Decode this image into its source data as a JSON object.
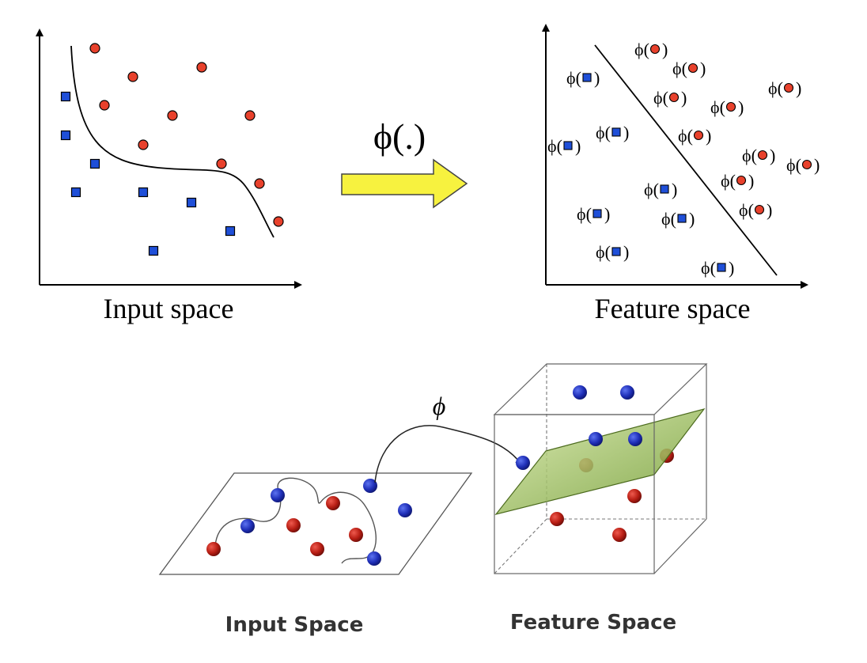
{
  "top": {
    "mapping_label": "ϕ(.)",
    "input_caption": "Input space",
    "feature_caption": "Feature space",
    "phi_prefix": "ϕ(",
    "phi_suffix": ")"
  },
  "bottom": {
    "phi_symbol": "ϕ",
    "input_caption": "Input Space",
    "feature_caption": "Feature Space"
  },
  "colors": {
    "circle_class": "#e8412c",
    "square_class": "#1f4fd8",
    "arrow_fill": "#f7f23f",
    "plane_fill": "#9bbf55",
    "ball_blue": "#1f2fb8",
    "ball_red": "#b81e14"
  },
  "icons": {
    "mapping_arrow": "right-arrow-icon",
    "curved_arrow": "curved-arrow-icon"
  }
}
